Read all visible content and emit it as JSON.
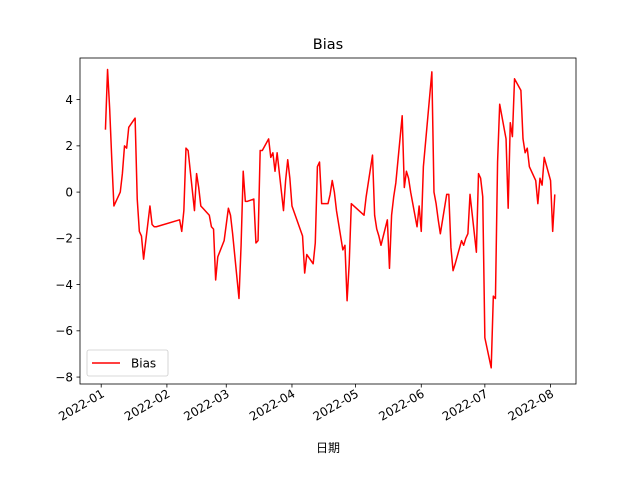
{
  "chart_data": {
    "type": "line",
    "title": "Bias",
    "xlabel": "日期",
    "ylabel": "",
    "xlim": [
      "2021-12-22",
      "2022-08-13"
    ],
    "ylim": [
      -8.3,
      5.8
    ],
    "x_ticks": [
      "2022-01-01",
      "2022-02-01",
      "2022-03-01",
      "2022-04-01",
      "2022-05-01",
      "2022-06-01",
      "2022-07-01",
      "2022-08-01"
    ],
    "x_tick_labels": [
      "2022-01",
      "2022-02",
      "2022-03",
      "2022-04",
      "2022-05",
      "2022-06",
      "2022-07",
      "2022-08"
    ],
    "y_ticks": [
      -8,
      -6,
      -4,
      -2,
      0,
      2,
      4
    ],
    "y_tick_labels": [
      "−8",
      "−6",
      "−4",
      "−2",
      "0",
      "2",
      "4"
    ],
    "grid": false,
    "legend_position": "lower-left",
    "series": [
      {
        "name": "Bias",
        "color": "#ff0000",
        "x": [
          "2022-01-03",
          "2022-01-04",
          "2022-01-05",
          "2022-01-06",
          "2022-01-07",
          "2022-01-10",
          "2022-01-11",
          "2022-01-12",
          "2022-01-13",
          "2022-01-14",
          "2022-01-17",
          "2022-01-18",
          "2022-01-19",
          "2022-01-20",
          "2022-01-21",
          "2022-01-24",
          "2022-01-25",
          "2022-01-26",
          "2022-01-27",
          "2022-02-07",
          "2022-02-08",
          "2022-02-09",
          "2022-02-10",
          "2022-02-11",
          "2022-02-14",
          "2022-02-15",
          "2022-02-16",
          "2022-02-17",
          "2022-02-18",
          "2022-02-21",
          "2022-02-22",
          "2022-02-23",
          "2022-02-24",
          "2022-02-25",
          "2022-02-28",
          "2022-03-01",
          "2022-03-02",
          "2022-03-03",
          "2022-03-04",
          "2022-03-07",
          "2022-03-08",
          "2022-03-09",
          "2022-03-10",
          "2022-03-11",
          "2022-03-14",
          "2022-03-15",
          "2022-03-16",
          "2022-03-17",
          "2022-03-18",
          "2022-03-21",
          "2022-03-22",
          "2022-03-23",
          "2022-03-24",
          "2022-03-25",
          "2022-03-28",
          "2022-03-29",
          "2022-03-30",
          "2022-03-31",
          "2022-04-01",
          "2022-04-06",
          "2022-04-07",
          "2022-04-08",
          "2022-04-11",
          "2022-04-12",
          "2022-04-13",
          "2022-04-14",
          "2022-04-15",
          "2022-04-18",
          "2022-04-19",
          "2022-04-20",
          "2022-04-21",
          "2022-04-22",
          "2022-04-25",
          "2022-04-26",
          "2022-04-27",
          "2022-04-28",
          "2022-04-29",
          "2022-05-05",
          "2022-05-06",
          "2022-05-09",
          "2022-05-10",
          "2022-05-11",
          "2022-05-12",
          "2022-05-13",
          "2022-05-16",
          "2022-05-17",
          "2022-05-18",
          "2022-05-19",
          "2022-05-20",
          "2022-05-23",
          "2022-05-24",
          "2022-05-25",
          "2022-05-26",
          "2022-05-27",
          "2022-05-30",
          "2022-05-31",
          "2022-06-01",
          "2022-06-02",
          "2022-06-06",
          "2022-06-07",
          "2022-06-08",
          "2022-06-09",
          "2022-06-10",
          "2022-06-13",
          "2022-06-14",
          "2022-06-15",
          "2022-06-16",
          "2022-06-17",
          "2022-06-20",
          "2022-06-21",
          "2022-06-22",
          "2022-06-23",
          "2022-06-24",
          "2022-06-27",
          "2022-06-28",
          "2022-06-29",
          "2022-06-30",
          "2022-07-01",
          "2022-07-04",
          "2022-07-05",
          "2022-07-06",
          "2022-07-07",
          "2022-07-08",
          "2022-07-11",
          "2022-07-12",
          "2022-07-13",
          "2022-07-14",
          "2022-07-15",
          "2022-07-18",
          "2022-07-19",
          "2022-07-20",
          "2022-07-21",
          "2022-07-22",
          "2022-07-25",
          "2022-07-26",
          "2022-07-27",
          "2022-07-28",
          "2022-07-29",
          "2022-08-01",
          "2022-08-02",
          "2022-08-03"
        ],
        "y": [
          2.7,
          5.3,
          3.6,
          1.4,
          -0.6,
          0.0,
          0.8,
          2.0,
          1.9,
          2.8,
          3.2,
          -0.3,
          -1.7,
          -1.9,
          -2.9,
          -0.6,
          -1.4,
          -1.5,
          -1.5,
          -1.2,
          -1.7,
          -0.8,
          1.9,
          1.8,
          -0.8,
          0.8,
          0.2,
          -0.6,
          -0.7,
          -1.0,
          -1.5,
          -1.6,
          -3.8,
          -2.8,
          -2.1,
          -1.4,
          -0.7,
          -1.0,
          -1.8,
          -4.6,
          -2.3,
          0.9,
          -0.4,
          -0.4,
          -0.3,
          -2.2,
          -2.1,
          1.8,
          1.8,
          2.3,
          1.5,
          1.7,
          0.9,
          1.7,
          -0.8,
          0.5,
          1.4,
          0.6,
          -0.6,
          -1.9,
          -3.5,
          -2.7,
          -3.1,
          -2.2,
          1.1,
          1.3,
          -0.5,
          -0.5,
          -0.1,
          0.5,
          0.0,
          -0.8,
          -2.5,
          -2.3,
          -4.7,
          -3.1,
          -0.5,
          -1.0,
          -0.2,
          1.6,
          -1.0,
          -1.6,
          -1.9,
          -2.3,
          -1.2,
          -3.3,
          -1.0,
          -0.2,
          0.4,
          3.3,
          0.2,
          0.9,
          0.6,
          0.0,
          -1.5,
          -0.6,
          -1.7,
          1.1,
          5.2,
          0.0,
          -0.5,
          -1.2,
          -1.8,
          -0.1,
          -0.1,
          -2.4,
          -3.4,
          -3.1,
          -2.1,
          -2.3,
          -2.0,
          -1.8,
          -0.1,
          -2.6,
          0.8,
          0.6,
          -0.2,
          -6.3,
          -7.6,
          -4.5,
          -4.6,
          1.3,
          3.8,
          2.3,
          -0.7,
          3.0,
          2.4,
          4.9,
          4.4,
          2.3,
          1.7,
          1.9,
          1.1,
          0.5,
          -0.5,
          0.6,
          0.3,
          1.5,
          0.5,
          -1.7,
          -0.1
        ]
      }
    ]
  }
}
